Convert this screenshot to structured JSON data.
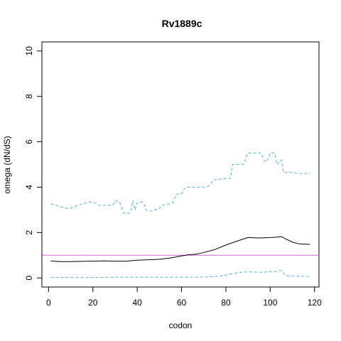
{
  "chart_data": {
    "type": "line",
    "title": "Rv1889c",
    "xlabel": "codon",
    "ylabel": "omega (dN/dS)",
    "xlim": [
      -3,
      122
    ],
    "ylim": [
      -0.4,
      10.4
    ],
    "xticks": [
      0,
      20,
      40,
      60,
      80,
      100,
      120
    ],
    "yticks": [
      0,
      2,
      4,
      6,
      8,
      10
    ],
    "grid": false,
    "legend": "none",
    "reference_line": {
      "y": 1,
      "color": "#cc66cc"
    },
    "series": [
      {
        "role": "upper",
        "style": "dashed",
        "color": "#4ab0e0",
        "points": [
          [
            1,
            3.25
          ],
          [
            3,
            3.22
          ],
          [
            5,
            3.15
          ],
          [
            7,
            3.1
          ],
          [
            9,
            3.05
          ],
          [
            11,
            3.1
          ],
          [
            13,
            3.2
          ],
          [
            15,
            3.25
          ],
          [
            17,
            3.3
          ],
          [
            19,
            3.35
          ],
          [
            21,
            3.3
          ],
          [
            23,
            3.2
          ],
          [
            25,
            3.2
          ],
          [
            27,
            3.2
          ],
          [
            29,
            3.2
          ],
          [
            30,
            3.4
          ],
          [
            32,
            3.35
          ],
          [
            33,
            3.1
          ],
          [
            34,
            2.85
          ],
          [
            36,
            2.85
          ],
          [
            37,
            2.9
          ],
          [
            38,
            3.4
          ],
          [
            39,
            3.0
          ],
          [
            40,
            3.3
          ],
          [
            42,
            3.35
          ],
          [
            43,
            3.3
          ],
          [
            44,
            3.0
          ],
          [
            45,
            2.95
          ],
          [
            47,
            2.95
          ],
          [
            48,
            3.0
          ],
          [
            50,
            3.05
          ],
          [
            51,
            3.2
          ],
          [
            54,
            3.25
          ],
          [
            56,
            3.3
          ],
          [
            57,
            3.55
          ],
          [
            58,
            3.7
          ],
          [
            60,
            3.7
          ],
          [
            61,
            3.9
          ],
          [
            62,
            4.0
          ],
          [
            65,
            4.0
          ],
          [
            68,
            4.0
          ],
          [
            71,
            4.0
          ],
          [
            73,
            4.1
          ],
          [
            74,
            4.3
          ],
          [
            76,
            4.35
          ],
          [
            78,
            4.35
          ],
          [
            80,
            4.38
          ],
          [
            82,
            4.38
          ],
          [
            83,
            5.0
          ],
          [
            86,
            5.0
          ],
          [
            88,
            5.0
          ],
          [
            89,
            5.3
          ],
          [
            90,
            5.5
          ],
          [
            93,
            5.5
          ],
          [
            96,
            5.5
          ],
          [
            97,
            5.2
          ],
          [
            98,
            5.1
          ],
          [
            99,
            5.25
          ],
          [
            100,
            5.5
          ],
          [
            102,
            5.5
          ],
          [
            103,
            5.0
          ],
          [
            104,
            5.1
          ],
          [
            105,
            5.2
          ],
          [
            106,
            4.65
          ],
          [
            110,
            4.65
          ],
          [
            113,
            4.6
          ],
          [
            116,
            4.6
          ],
          [
            118,
            4.6
          ]
        ]
      },
      {
        "role": "estimate",
        "style": "solid",
        "color": "#000000",
        "points": [
          [
            1,
            0.75
          ],
          [
            5,
            0.72
          ],
          [
            10,
            0.72
          ],
          [
            15,
            0.73
          ],
          [
            20,
            0.74
          ],
          [
            25,
            0.75
          ],
          [
            30,
            0.74
          ],
          [
            35,
            0.74
          ],
          [
            40,
            0.78
          ],
          [
            45,
            0.8
          ],
          [
            50,
            0.82
          ],
          [
            55,
            0.88
          ],
          [
            60,
            0.97
          ],
          [
            63,
            1.02
          ],
          [
            67,
            1.05
          ],
          [
            70,
            1.12
          ],
          [
            75,
            1.25
          ],
          [
            80,
            1.45
          ],
          [
            85,
            1.62
          ],
          [
            88,
            1.72
          ],
          [
            90,
            1.78
          ],
          [
            95,
            1.76
          ],
          [
            100,
            1.78
          ],
          [
            103,
            1.8
          ],
          [
            105,
            1.82
          ],
          [
            107,
            1.72
          ],
          [
            110,
            1.58
          ],
          [
            113,
            1.5
          ],
          [
            118,
            1.48
          ]
        ]
      },
      {
        "role": "lower",
        "style": "dashed",
        "color": "#4ab0e0",
        "points": [
          [
            1,
            0.02
          ],
          [
            10,
            0.02
          ],
          [
            20,
            0.02
          ],
          [
            30,
            0.03
          ],
          [
            40,
            0.03
          ],
          [
            50,
            0.03
          ],
          [
            60,
            0.03
          ],
          [
            70,
            0.04
          ],
          [
            75,
            0.06
          ],
          [
            80,
            0.12
          ],
          [
            83,
            0.2
          ],
          [
            87,
            0.25
          ],
          [
            90,
            0.27
          ],
          [
            95,
            0.25
          ],
          [
            100,
            0.27
          ],
          [
            102,
            0.27
          ],
          [
            104,
            0.32
          ],
          [
            105,
            0.33
          ],
          [
            107,
            0.1
          ],
          [
            110,
            0.08
          ],
          [
            118,
            0.07
          ]
        ]
      }
    ]
  }
}
